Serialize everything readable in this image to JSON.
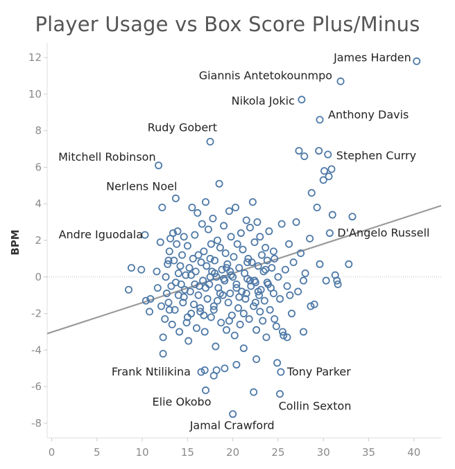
{
  "chart_data": {
    "type": "scatter",
    "title": "Player Usage vs Box Score Plus/Minus",
    "xlabel": "",
    "ylabel": "BPM",
    "xlim": [
      -0.5,
      43
    ],
    "ylim": [
      -8.8,
      12.8
    ],
    "xticks": [
      0,
      5,
      10,
      15,
      20,
      25,
      30,
      35,
      40
    ],
    "yticks": [
      12,
      10,
      8,
      6,
      4,
      2,
      0,
      -2,
      -4,
      -6,
      -8
    ],
    "marker_color": "#4e79a7",
    "trend_color": "#9a9a9a",
    "zero_line_color": "#bbbbbb",
    "grid": false,
    "trendline": {
      "x": [
        -0.5,
        43
      ],
      "y": [
        -3.1,
        3.9
      ]
    },
    "labeled_points": [
      {
        "name": "James Harden",
        "x": 40.3,
        "y": 11.8
      },
      {
        "name": "Giannis Antetokounmpo",
        "x": 31.9,
        "y": 10.7
      },
      {
        "name": "Nikola Jokic",
        "x": 27.6,
        "y": 9.7
      },
      {
        "name": "Anthony Davis",
        "x": 29.6,
        "y": 8.6
      },
      {
        "name": "Rudy Gobert",
        "x": 17.5,
        "y": 7.4
      },
      {
        "name": "Stephen Curry",
        "x": 30.5,
        "y": 6.7
      },
      {
        "name": "Mitchell Robinson",
        "x": 11.8,
        "y": 6.1
      },
      {
        "name": "Nerlens Noel",
        "x": 13.7,
        "y": 4.3
      },
      {
        "name": "Andre Iguodala",
        "x": 10.3,
        "y": 2.3
      },
      {
        "name": "D'Angelo Russell",
        "x": 30.7,
        "y": 2.4
      },
      {
        "name": "Frank Ntilikina",
        "x": 16.5,
        "y": -5.2
      },
      {
        "name": "Tony Parker",
        "x": 25.3,
        "y": -5.2
      },
      {
        "name": "Elie Okobo",
        "x": 17.0,
        "y": -6.2
      },
      {
        "name": "Collin Sexton",
        "x": 25.2,
        "y": -6.4
      },
      {
        "name": "Jamal Crawford",
        "x": 20.0,
        "y": -7.5
      }
    ],
    "other_points": [
      [
        8.5,
        -0.7
      ],
      [
        8.8,
        0.5
      ],
      [
        9.9,
        0.4
      ],
      [
        10.4,
        -1.3
      ],
      [
        10.8,
        -1.9
      ],
      [
        10.9,
        -1.2
      ],
      [
        11.6,
        0.3
      ],
      [
        11.7,
        -0.6
      ],
      [
        12.0,
        1.9
      ],
      [
        12.1,
        -1.6
      ],
      [
        12.2,
        3.8
      ],
      [
        12.3,
        -3.3
      ],
      [
        12.3,
        -4.2
      ],
      [
        12.5,
        -2.3
      ],
      [
        12.6,
        0.0
      ],
      [
        12.7,
        -0.9
      ],
      [
        12.8,
        0.7
      ],
      [
        12.9,
        -1.4
      ],
      [
        13.0,
        1.4
      ],
      [
        13.1,
        2.1
      ],
      [
        13.2,
        -0.5
      ],
      [
        13.3,
        -2.6
      ],
      [
        13.4,
        2.4
      ],
      [
        13.5,
        0.9
      ],
      [
        13.6,
        -1.8
      ],
      [
        13.7,
        -0.3
      ],
      [
        13.8,
        1.8
      ],
      [
        13.9,
        2.5
      ],
      [
        14.0,
        -1.0
      ],
      [
        14.1,
        -3.0
      ],
      [
        14.2,
        0.6
      ],
      [
        14.3,
        -0.4
      ],
      [
        14.4,
        1.2
      ],
      [
        14.5,
        -1.4
      ],
      [
        14.6,
        2.2
      ],
      [
        14.7,
        -0.7
      ],
      [
        14.8,
        0.1
      ],
      [
        14.9,
        -2.5
      ],
      [
        15.0,
        1.7
      ],
      [
        15.1,
        -3.5
      ],
      [
        15.2,
        0.5
      ],
      [
        15.3,
        -0.8
      ],
      [
        15.4,
        -2.0
      ],
      [
        15.5,
        3.8
      ],
      [
        15.6,
        1.0
      ],
      [
        15.7,
        -1.5
      ],
      [
        15.8,
        2.3
      ],
      [
        15.9,
        0.3
      ],
      [
        16.0,
        -2.8
      ],
      [
        16.1,
        3.5
      ],
      [
        16.2,
        1.2
      ],
      [
        16.3,
        -0.5
      ],
      [
        16.4,
        -1.9
      ],
      [
        16.5,
        0.8
      ],
      [
        16.6,
        2.9
      ],
      [
        16.7,
        -0.2
      ],
      [
        16.8,
        1.4
      ],
      [
        16.9,
        -3.0
      ],
      [
        17.0,
        4.1
      ],
      [
        17.1,
        0.6
      ],
      [
        17.2,
        -1.2
      ],
      [
        17.3,
        2.6
      ],
      [
        17.4,
        -0.4
      ],
      [
        17.5,
        1.0
      ],
      [
        17.6,
        -2.2
      ],
      [
        17.7,
        0.3
      ],
      [
        17.8,
        3.2
      ],
      [
        17.9,
        -1.6
      ],
      [
        18.0,
        0.9
      ],
      [
        18.1,
        -3.8
      ],
      [
        18.2,
        0.0
      ],
      [
        18.3,
        2.0
      ],
      [
        18.4,
        -0.6
      ],
      [
        18.5,
        5.1
      ],
      [
        18.6,
        1.6
      ],
      [
        18.7,
        -2.5
      ],
      [
        18.8,
        0.4
      ],
      [
        18.9,
        -1.0
      ],
      [
        19.0,
        2.8
      ],
      [
        19.1,
        -0.2
      ],
      [
        19.2,
        1.3
      ],
      [
        19.3,
        -2.9
      ],
      [
        19.4,
        0.7
      ],
      [
        19.5,
        -1.4
      ],
      [
        19.6,
        3.6
      ],
      [
        19.7,
        -0.9
      ],
      [
        19.8,
        2.2
      ],
      [
        19.9,
        -2.1
      ],
      [
        20.0,
        0.0
      ],
      [
        20.1,
        1.1
      ],
      [
        20.2,
        -3.2
      ],
      [
        20.3,
        3.8
      ],
      [
        20.4,
        -0.4
      ],
      [
        20.5,
        1.8
      ],
      [
        20.6,
        -1.7
      ],
      [
        20.7,
        0.5
      ],
      [
        20.8,
        -2.6
      ],
      [
        20.9,
        2.4
      ],
      [
        21.0,
        -0.8
      ],
      [
        21.1,
        1.5
      ],
      [
        21.2,
        -3.9
      ],
      [
        21.3,
        0.2
      ],
      [
        21.4,
        -1.2
      ],
      [
        21.5,
        3.1
      ],
      [
        21.6,
        -0.1
      ],
      [
        21.7,
        1.0
      ],
      [
        21.8,
        -2.3
      ],
      [
        21.9,
        2.7
      ],
      [
        22.0,
        -0.5
      ],
      [
        22.1,
        0.8
      ],
      [
        22.2,
        4.1
      ],
      [
        22.3,
        -1.6
      ],
      [
        22.4,
        1.9
      ],
      [
        22.5,
        -0.3
      ],
      [
        22.6,
        -2.9
      ],
      [
        22.7,
        3.0
      ],
      [
        22.8,
        0.6
      ],
      [
        22.9,
        -1.0
      ],
      [
        23.0,
        2.2
      ],
      [
        23.1,
        -0.7
      ],
      [
        23.2,
        1.2
      ],
      [
        23.3,
        -2.4
      ],
      [
        23.4,
        0.3
      ],
      [
        23.5,
        -1.3
      ],
      [
        23.6,
        1.6
      ],
      [
        23.7,
        -3.3
      ],
      [
        23.8,
        0.9
      ],
      [
        23.9,
        -0.4
      ],
      [
        24.0,
        2.5
      ],
      [
        24.1,
        -1.8
      ],
      [
        24.3,
        0.5
      ],
      [
        24.5,
        -0.9
      ],
      [
        24.6,
        1.0
      ],
      [
        24.8,
        -2.7
      ],
      [
        25.0,
        0.0
      ],
      [
        25.2,
        -1.2
      ],
      [
        25.4,
        2.9
      ],
      [
        25.6,
        -3.2
      ],
      [
        25.8,
        0.4
      ],
      [
        26.0,
        -0.5
      ],
      [
        26.2,
        1.8
      ],
      [
        26.5,
        -2.0
      ],
      [
        26.7,
        0.8
      ],
      [
        27.0,
        3.0
      ],
      [
        27.2,
        -0.8
      ],
      [
        27.5,
        1.3
      ],
      [
        27.8,
        -3.0
      ],
      [
        28.0,
        0.2
      ],
      [
        28.5,
        2.1
      ],
      [
        29.0,
        -1.5
      ],
      [
        29.3,
        3.8
      ],
      [
        29.6,
        0.7
      ],
      [
        30.0,
        5.3
      ],
      [
        30.3,
        -0.2
      ],
      [
        30.6,
        5.5
      ],
      [
        31.0,
        3.4
      ],
      [
        31.3,
        0.1
      ],
      [
        31.6,
        -0.4
      ],
      [
        32.8,
        0.7
      ],
      [
        33.2,
        3.3
      ],
      [
        14.6,
        -1.1
      ],
      [
        15.4,
        0.1
      ],
      [
        16.2,
        -1.0
      ],
      [
        16.8,
        -2.1
      ],
      [
        17.6,
        1.8
      ],
      [
        18.3,
        -1.3
      ],
      [
        19.0,
        -0.1
      ],
      [
        19.7,
        0.3
      ],
      [
        20.4,
        -0.6
      ],
      [
        21.6,
        0.8
      ],
      [
        22.4,
        -0.2
      ],
      [
        23.0,
        -1.9
      ],
      [
        23.8,
        -0.3
      ],
      [
        24.5,
        1.4
      ],
      [
        13.0,
        -1.8
      ],
      [
        12.9,
        0.9
      ],
      [
        14.0,
        0.2
      ],
      [
        15.8,
        -0.4
      ],
      [
        17.0,
        -0.6
      ],
      [
        18.0,
        0.2
      ],
      [
        18.6,
        -0.9
      ],
      [
        19.3,
        0.5
      ],
      [
        20.7,
        -1.1
      ],
      [
        21.9,
        -0.2
      ],
      [
        22.8,
        -0.8
      ],
      [
        23.6,
        0.4
      ],
      [
        24.2,
        -0.6
      ],
      [
        15.0,
        -2.2
      ],
      [
        16.4,
        -1.7
      ],
      [
        17.9,
        -1.8
      ],
      [
        19.6,
        -2.4
      ],
      [
        21.2,
        -2.0
      ],
      [
        22.5,
        -1.4
      ],
      [
        24.6,
        -2.3
      ],
      [
        26.3,
        -1.0
      ],
      [
        27.8,
        -0.2
      ],
      [
        16.9,
        -5.1
      ],
      [
        17.9,
        -5.4
      ],
      [
        18.2,
        -5.1
      ],
      [
        19.1,
        -5.0
      ],
      [
        20.4,
        -4.8
      ],
      [
        22.6,
        -4.5
      ],
      [
        24.9,
        -4.7
      ],
      [
        22.3,
        -6.3
      ],
      [
        28.6,
        -1.6
      ],
      [
        31.5,
        -0.2
      ],
      [
        27.3,
        6.9
      ],
      [
        27.9,
        6.6
      ],
      [
        29.5,
        6.9
      ],
      [
        30.1,
        5.8
      ],
      [
        30.9,
        5.9
      ],
      [
        28.7,
        4.6
      ],
      [
        26.0,
        -3.3
      ],
      [
        25.5,
        -3.0
      ],
      [
        17.5,
        0.0
      ],
      [
        19.8,
        0.1
      ],
      [
        21.5,
        -0.9
      ]
    ]
  }
}
